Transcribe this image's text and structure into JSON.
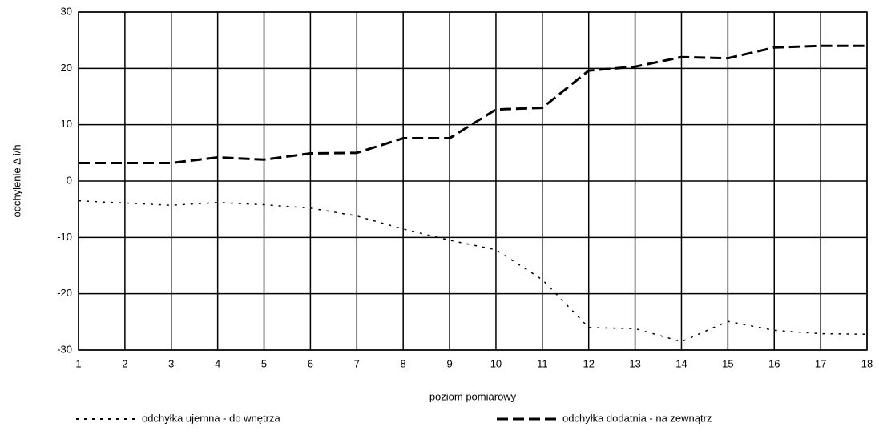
{
  "chart_data": {
    "type": "line",
    "x_label": "poziom pomiarowy",
    "y_label": "odchylenie Δ i/h",
    "x": [
      1,
      2,
      3,
      4,
      5,
      6,
      7,
      8,
      9,
      10,
      11,
      12,
      13,
      14,
      15,
      16,
      17,
      18
    ],
    "series": [
      {
        "name": "odchyłka ujemna - do wnętrza",
        "color": "#000000",
        "dash": "dotted",
        "values": [
          -3.5,
          -3.9,
          -4.3,
          -3.8,
          -4.2,
          -4.8,
          -6.2,
          -8.5,
          -10.5,
          -12.2,
          -17.5,
          -26,
          -26.2,
          -28.5,
          -24.9,
          -26.5,
          -27.1,
          -27.2
        ]
      },
      {
        "name": "odchyłka dodatnia - na zewnątrz",
        "color": "#000000",
        "dash": "dashed",
        "values": [
          3.2,
          3.2,
          3.2,
          4.2,
          3.8,
          4.9,
          5,
          7.6,
          7.6,
          12.7,
          13,
          19.6,
          20.3,
          22,
          21.8,
          23.7,
          24,
          24
        ]
      }
    ],
    "xlim": [
      1,
      18
    ],
    "ylim": [
      -30,
      30
    ],
    "xticks": [
      1,
      2,
      3,
      4,
      5,
      6,
      7,
      8,
      9,
      10,
      11,
      12,
      13,
      14,
      15,
      16,
      17,
      18
    ],
    "yticks": [
      -30,
      -20,
      -10,
      0,
      10,
      20,
      30
    ],
    "grid": true,
    "legend": "bottom"
  }
}
